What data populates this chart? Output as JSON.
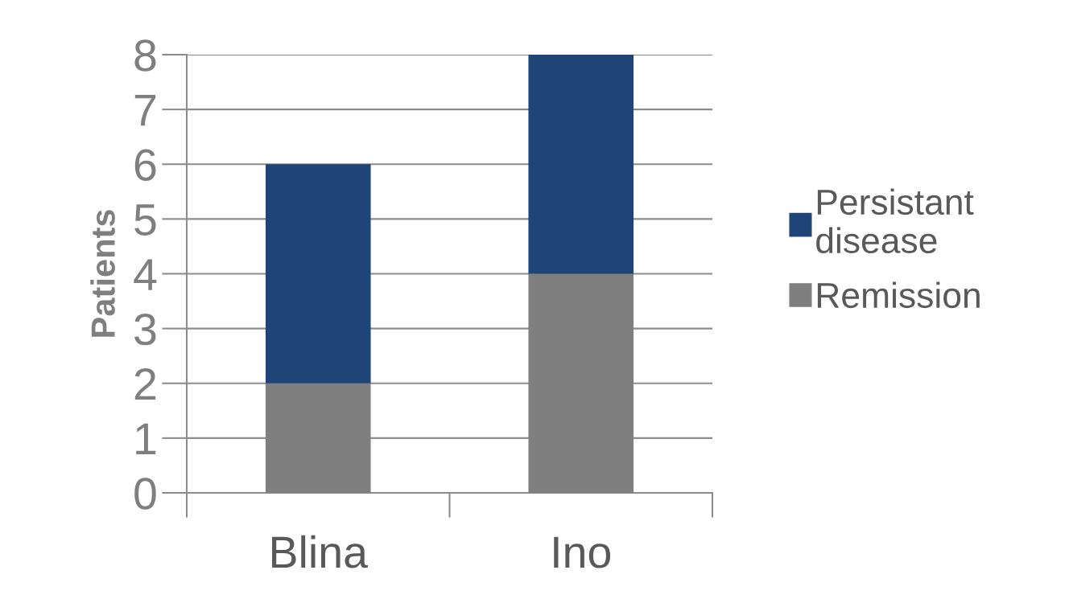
{
  "chart_data": {
    "type": "bar",
    "stacked": true,
    "ylabel": "Patients",
    "categories": [
      "Blina",
      "Ino"
    ],
    "series": [
      {
        "name": "Remission",
        "color": "#7f7f7f",
        "values": [
          2,
          4
        ]
      },
      {
        "name": "Persistant disease",
        "color": "#1f4477",
        "values": [
          4,
          4
        ]
      }
    ],
    "ylim": [
      0,
      8
    ],
    "yticks": [
      0,
      1,
      2,
      3,
      4,
      5,
      6,
      7,
      8
    ],
    "grid": "y",
    "legend": "right"
  }
}
